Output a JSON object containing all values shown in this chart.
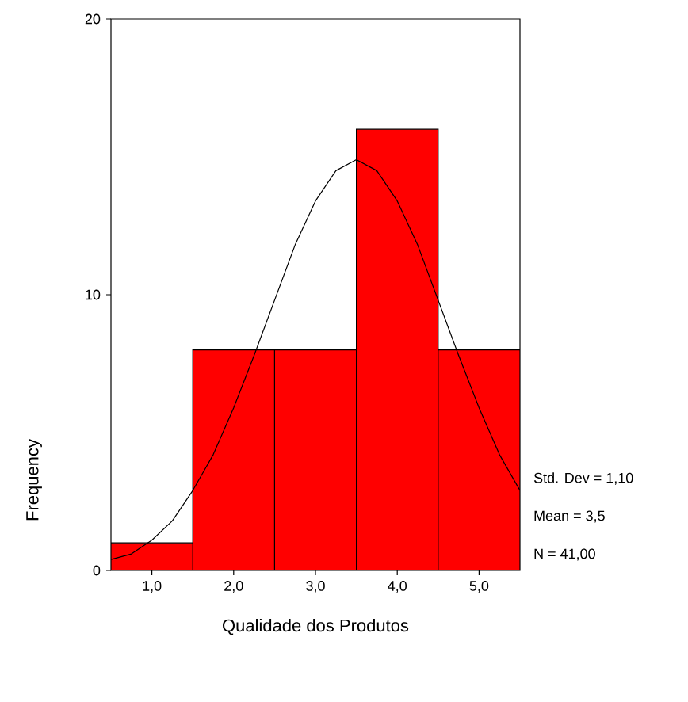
{
  "chart_data": {
    "type": "histogram",
    "xlabel": "Qualidade dos Produtos",
    "ylabel": "Frequency",
    "bins": [
      0.5,
      1.5,
      2.5,
      3.5,
      4.5,
      5.5
    ],
    "values": [
      1,
      8,
      8,
      16,
      8
    ],
    "color": "#ff0000",
    "series": [
      {
        "type": "line",
        "color": "#000000",
        "x": [
          0.5,
          0.75,
          1.0,
          1.25,
          1.5,
          1.75,
          2.0,
          2.25,
          2.5,
          2.75,
          3.0,
          3.25,
          3.5,
          3.75,
          4.0,
          4.25,
          4.5,
          4.75,
          5.0,
          5.25,
          5.5
        ],
        "values": [
          0.4,
          0.6,
          1.1,
          1.8,
          2.9,
          4.2,
          5.9,
          7.8,
          9.8,
          11.8,
          13.4,
          14.5,
          14.9,
          14.5,
          13.4,
          11.8,
          9.8,
          7.8,
          5.9,
          4.2,
          2.9
        ]
      }
    ],
    "xlim": [
      0.5,
      5.5
    ],
    "ylim": [
      0,
      20
    ],
    "xticks": [
      {
        "value": 1,
        "label": "1,0"
      },
      {
        "value": 2,
        "label": "2,0"
      },
      {
        "value": 3,
        "label": "3,0"
      },
      {
        "value": 4,
        "label": "4,0"
      },
      {
        "value": 5,
        "label": "5,0"
      }
    ],
    "yticks": [
      0,
      10,
      20
    ],
    "annotations": [
      "Std. Dev = 1,10",
      "Mean = 3,5",
      "N = 41,00"
    ]
  }
}
